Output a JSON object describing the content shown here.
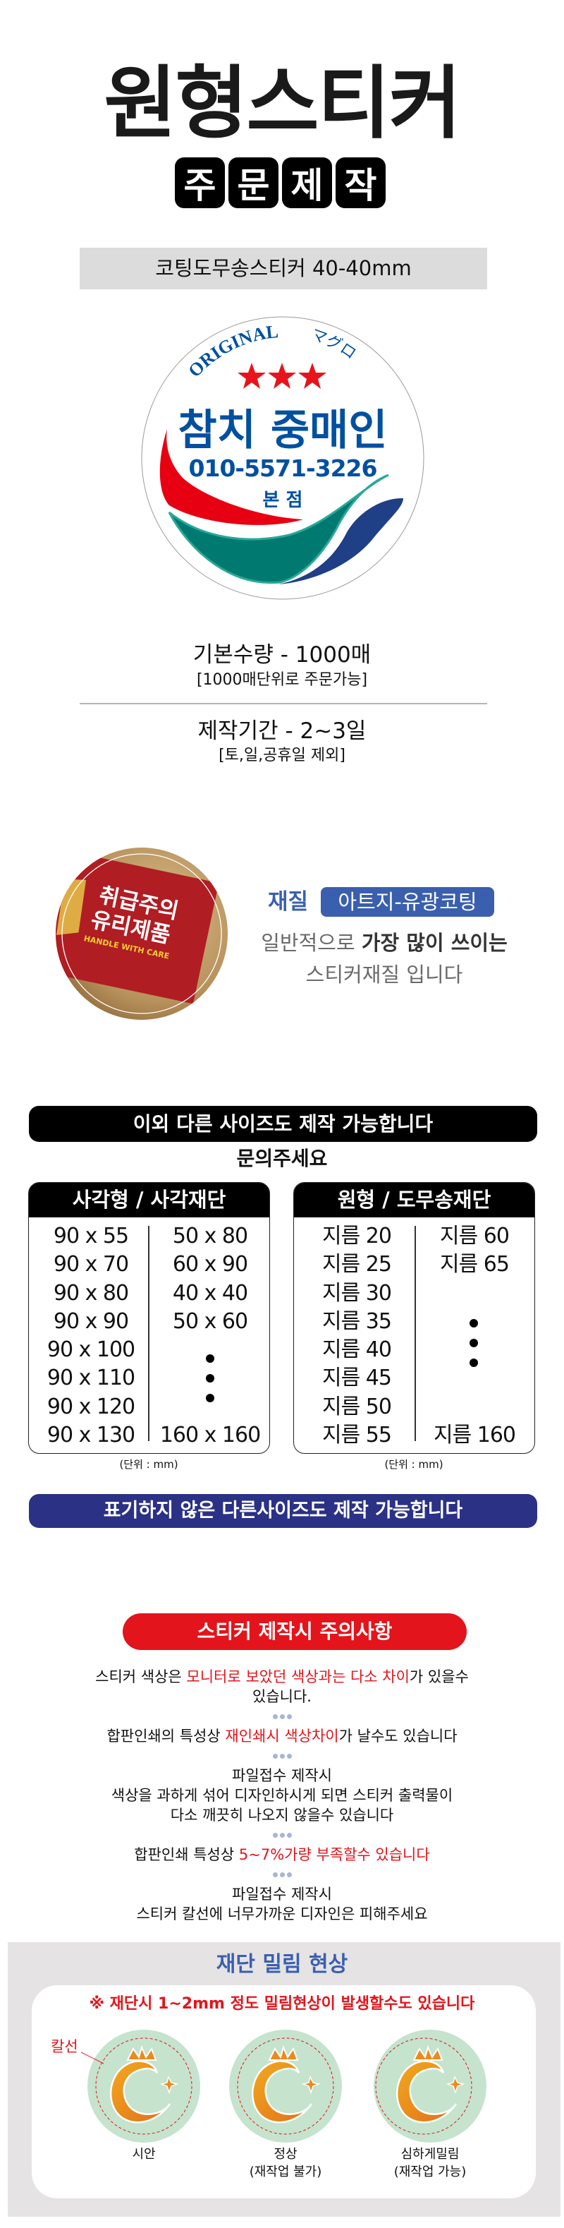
{
  "header": {
    "title": "원형스티커",
    "subtitle_chars": [
      "주",
      "문",
      "제",
      "작"
    ]
  },
  "product_bar": "코팅도무송스티커 40-40mm",
  "sample_sticker": {
    "arc_text_en": "ORIGINAL",
    "arc_text_jp": "マグロ",
    "name": "참치 중매인",
    "phone": "010-5571-3226",
    "branch": "본 점"
  },
  "specs": {
    "quantity": "기본수량 - 1000매",
    "quantity_note": "[1000매단위로 주문가능]",
    "period": "제작기간 - 2~3일",
    "period_note": "[토,일,공휴일 제외]"
  },
  "material": {
    "photo_text_1": "취급주의",
    "photo_text_2": "유리제품",
    "photo_text_en": "HANDLE WITH CARE",
    "label": "재질",
    "value": "아트지-유광코팅",
    "desc_line1_normal": "일반적으로 ",
    "desc_line1_bold": "가장 많이 쓰이는",
    "desc_line2": "스티커재질 입니다"
  },
  "sizes": {
    "banner": "이외 다른 사이즈도 제작 가능합니다",
    "inquiry": "문의주세요",
    "square": {
      "title": "사각형 / 사각재단",
      "col1": [
        "90 x 55",
        "90 x 70",
        "90 x 80",
        "90 x 90",
        "90 x 100",
        "90 x 110",
        "90 x 120",
        "90 x 130"
      ],
      "col2": [
        "50 x 80",
        "60 x 90",
        "40 x 40",
        "50 x 60",
        "160 x 160"
      ]
    },
    "round": {
      "title": "원형 / 도무송재단",
      "col1": [
        "지름 20",
        "지름 25",
        "지름 30",
        "지름 35",
        "지름 40",
        "지름 45",
        "지름 50",
        "지름 55"
      ],
      "col2": [
        "지름 60",
        "지름 65",
        "지름 160"
      ]
    },
    "unit": "(단위 : mm)",
    "footer": "표기하지 않은 다른사이즈도 제작 가능합니다"
  },
  "cautions": {
    "title": "스티커 제작시 주의사항",
    "item1": {
      "a": "스티커 색상은 ",
      "red": "모니터로 보았던 색상과는 다소 차이",
      "b": "가 있을수",
      "line2": "있습니다."
    },
    "item2": {
      "a": "합판인쇄의 특성상 ",
      "red": "재인쇄시 색상차이",
      "b": "가 날수도 있습니다"
    },
    "item3": {
      "line1": "파일접수 제작시",
      "line2": "색상을 과하게 섞어 디자인하시게 되면 스티커 출력물이",
      "line3": "다소 깨끗히 나오지 않을수 있습니다"
    },
    "item4": {
      "a": "합판인쇄 특성상 ",
      "red": "5~7%가량 부족할수 있습니다"
    },
    "item5": {
      "line1": "파일접수 제작시",
      "line2": "스티커 칼선에 너무가까운 디자인은 피해주세요"
    }
  },
  "cut": {
    "title": "재단 밀림 현상",
    "note": "※ 재단시 1~2mm 정도 밀림현상이 발생할수도 있습니다",
    "cut_line_label": "칼선",
    "samples": [
      {
        "label": "시안"
      },
      {
        "label": "정상",
        "sub": "(재작업 불가)"
      },
      {
        "label": "심하게밀림",
        "sub": "(재작업 가능)"
      }
    ]
  },
  "colors": {
    "black": "#000000",
    "product_bar": "#dcdcdc",
    "sticker_blue": "#0050a0",
    "sticker_red": "#e60012",
    "sticker_teal": "#007a70",
    "sticker_navy": "#1f3f86",
    "material_blue": "#3a5fae",
    "footer_navy": "#2b3185",
    "caution_red": "#e3141b",
    "cut_bg": "#e5e3e4",
    "sample_green": "#c5e3cd",
    "sample_orange": "#ec8a1e"
  }
}
